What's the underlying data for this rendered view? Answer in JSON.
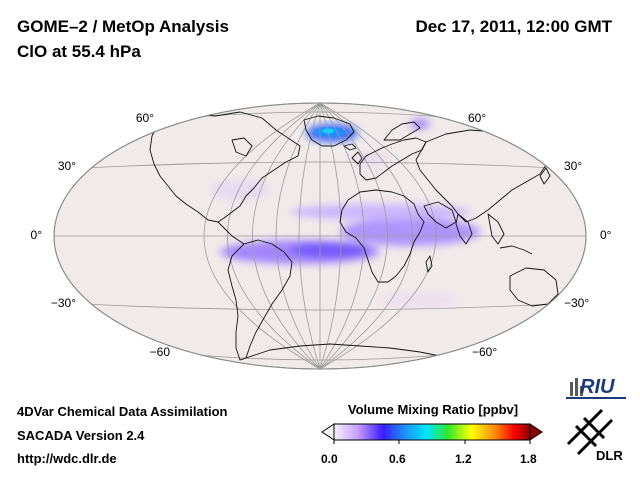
{
  "header": {
    "title_line1": "GOME–2 / MetOp Analysis",
    "title_line2": "ClO at 55.4 hPa",
    "datetime": "Dec 17, 2011, 12:00 GMT"
  },
  "map": {
    "projection": "Hammer-Aitoff (global)",
    "lat_labels_left": [
      "60°",
      "30°",
      "0°",
      "−30°",
      "−60"
    ],
    "lat_labels_right": [
      "60°",
      "30°",
      "0°",
      "−30°",
      "−60°"
    ],
    "background_color": "#f1eaea"
  },
  "colorbar": {
    "title": "Volume Mixing Ratio [ppbv]",
    "ticks": [
      "0.0",
      "0.6",
      "1.2",
      "1.8"
    ],
    "min": 0.0,
    "max": 1.8,
    "colors": [
      "#f4f0f6",
      "#c8a0ff",
      "#3a1bff",
      "#1e90ff",
      "#00e5ff",
      "#2ee82e",
      "#ffff00",
      "#ff8c00",
      "#ff0000",
      "#8b0000"
    ]
  },
  "footer": {
    "line1": "4DVar Chemical Data Assimilation",
    "line2": "SACADA Version 2.4",
    "line3": "http://wdc.dlr.de"
  },
  "logos": {
    "riu": "RIU",
    "dlr": "DLR"
  }
}
